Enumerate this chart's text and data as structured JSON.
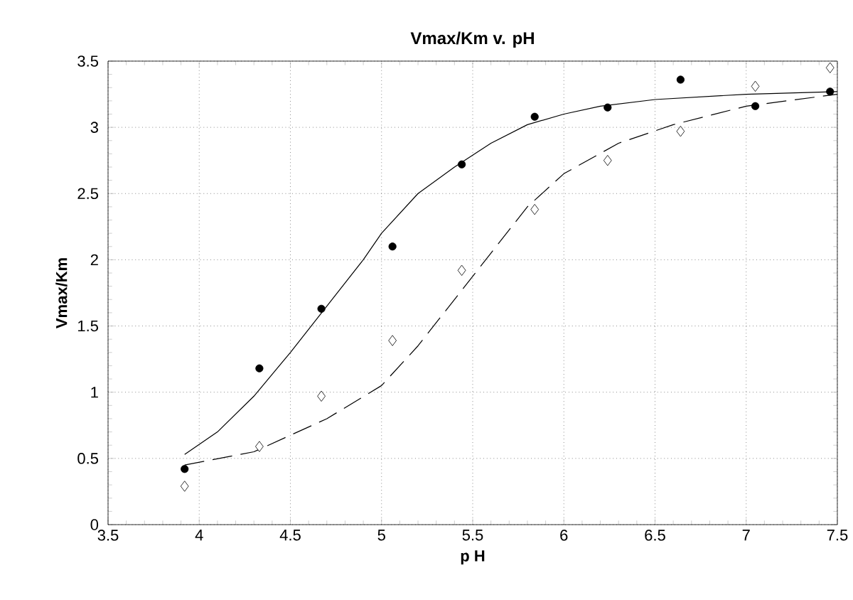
{
  "chart_data": {
    "type": "scatter",
    "title": "Vmax/Km v. pH",
    "xlabel": "p H",
    "ylabel": "Vmax/Km",
    "xlim": [
      3.5,
      7.5
    ],
    "xticks": [
      3.5,
      4,
      4.5,
      5,
      5.5,
      6,
      6.5,
      7,
      7.5
    ],
    "ylim": [
      0,
      3.5
    ],
    "yticks": [
      0,
      0.5,
      1,
      1.5,
      2,
      2.5,
      3,
      3.5
    ],
    "grid": true,
    "x": [
      3.92,
      4.33,
      4.67,
      5.06,
      5.44,
      5.84,
      6.24,
      6.64,
      7.05,
      7.46
    ],
    "series": [
      {
        "marker": "circle",
        "color": "#000000",
        "values": [
          0.42,
          1.18,
          1.63,
          2.1,
          2.72,
          3.08,
          3.15,
          3.36,
          3.16,
          3.27
        ]
      },
      {
        "marker": "diamond",
        "color": "#000000",
        "values": [
          0.29,
          0.59,
          0.97,
          1.39,
          1.92,
          2.38,
          2.75,
          2.97,
          3.31,
          3.45
        ]
      },
      {
        "type": "line",
        "line_style": "solid",
        "color": "#000000",
        "x": [
          3.92,
          4.1,
          4.3,
          4.5,
          4.7,
          4.9,
          5.0,
          5.2,
          5.4,
          5.6,
          5.8,
          6.0,
          6.2,
          6.5,
          7.0,
          7.5
        ],
        "values": [
          0.53,
          0.7,
          0.97,
          1.3,
          1.65,
          2.0,
          2.2,
          2.5,
          2.7,
          2.88,
          3.02,
          3.1,
          3.16,
          3.21,
          3.25,
          3.27
        ]
      },
      {
        "type": "line",
        "line_style": "dashed",
        "color": "#000000",
        "x": [
          3.92,
          4.3,
          4.7,
          5.0,
          5.2,
          5.4,
          5.6,
          5.8,
          6.0,
          6.3,
          6.6,
          7.0,
          7.5
        ],
        "values": [
          0.45,
          0.55,
          0.8,
          1.05,
          1.35,
          1.7,
          2.05,
          2.4,
          2.65,
          2.88,
          3.02,
          3.16,
          3.25
        ]
      }
    ]
  }
}
